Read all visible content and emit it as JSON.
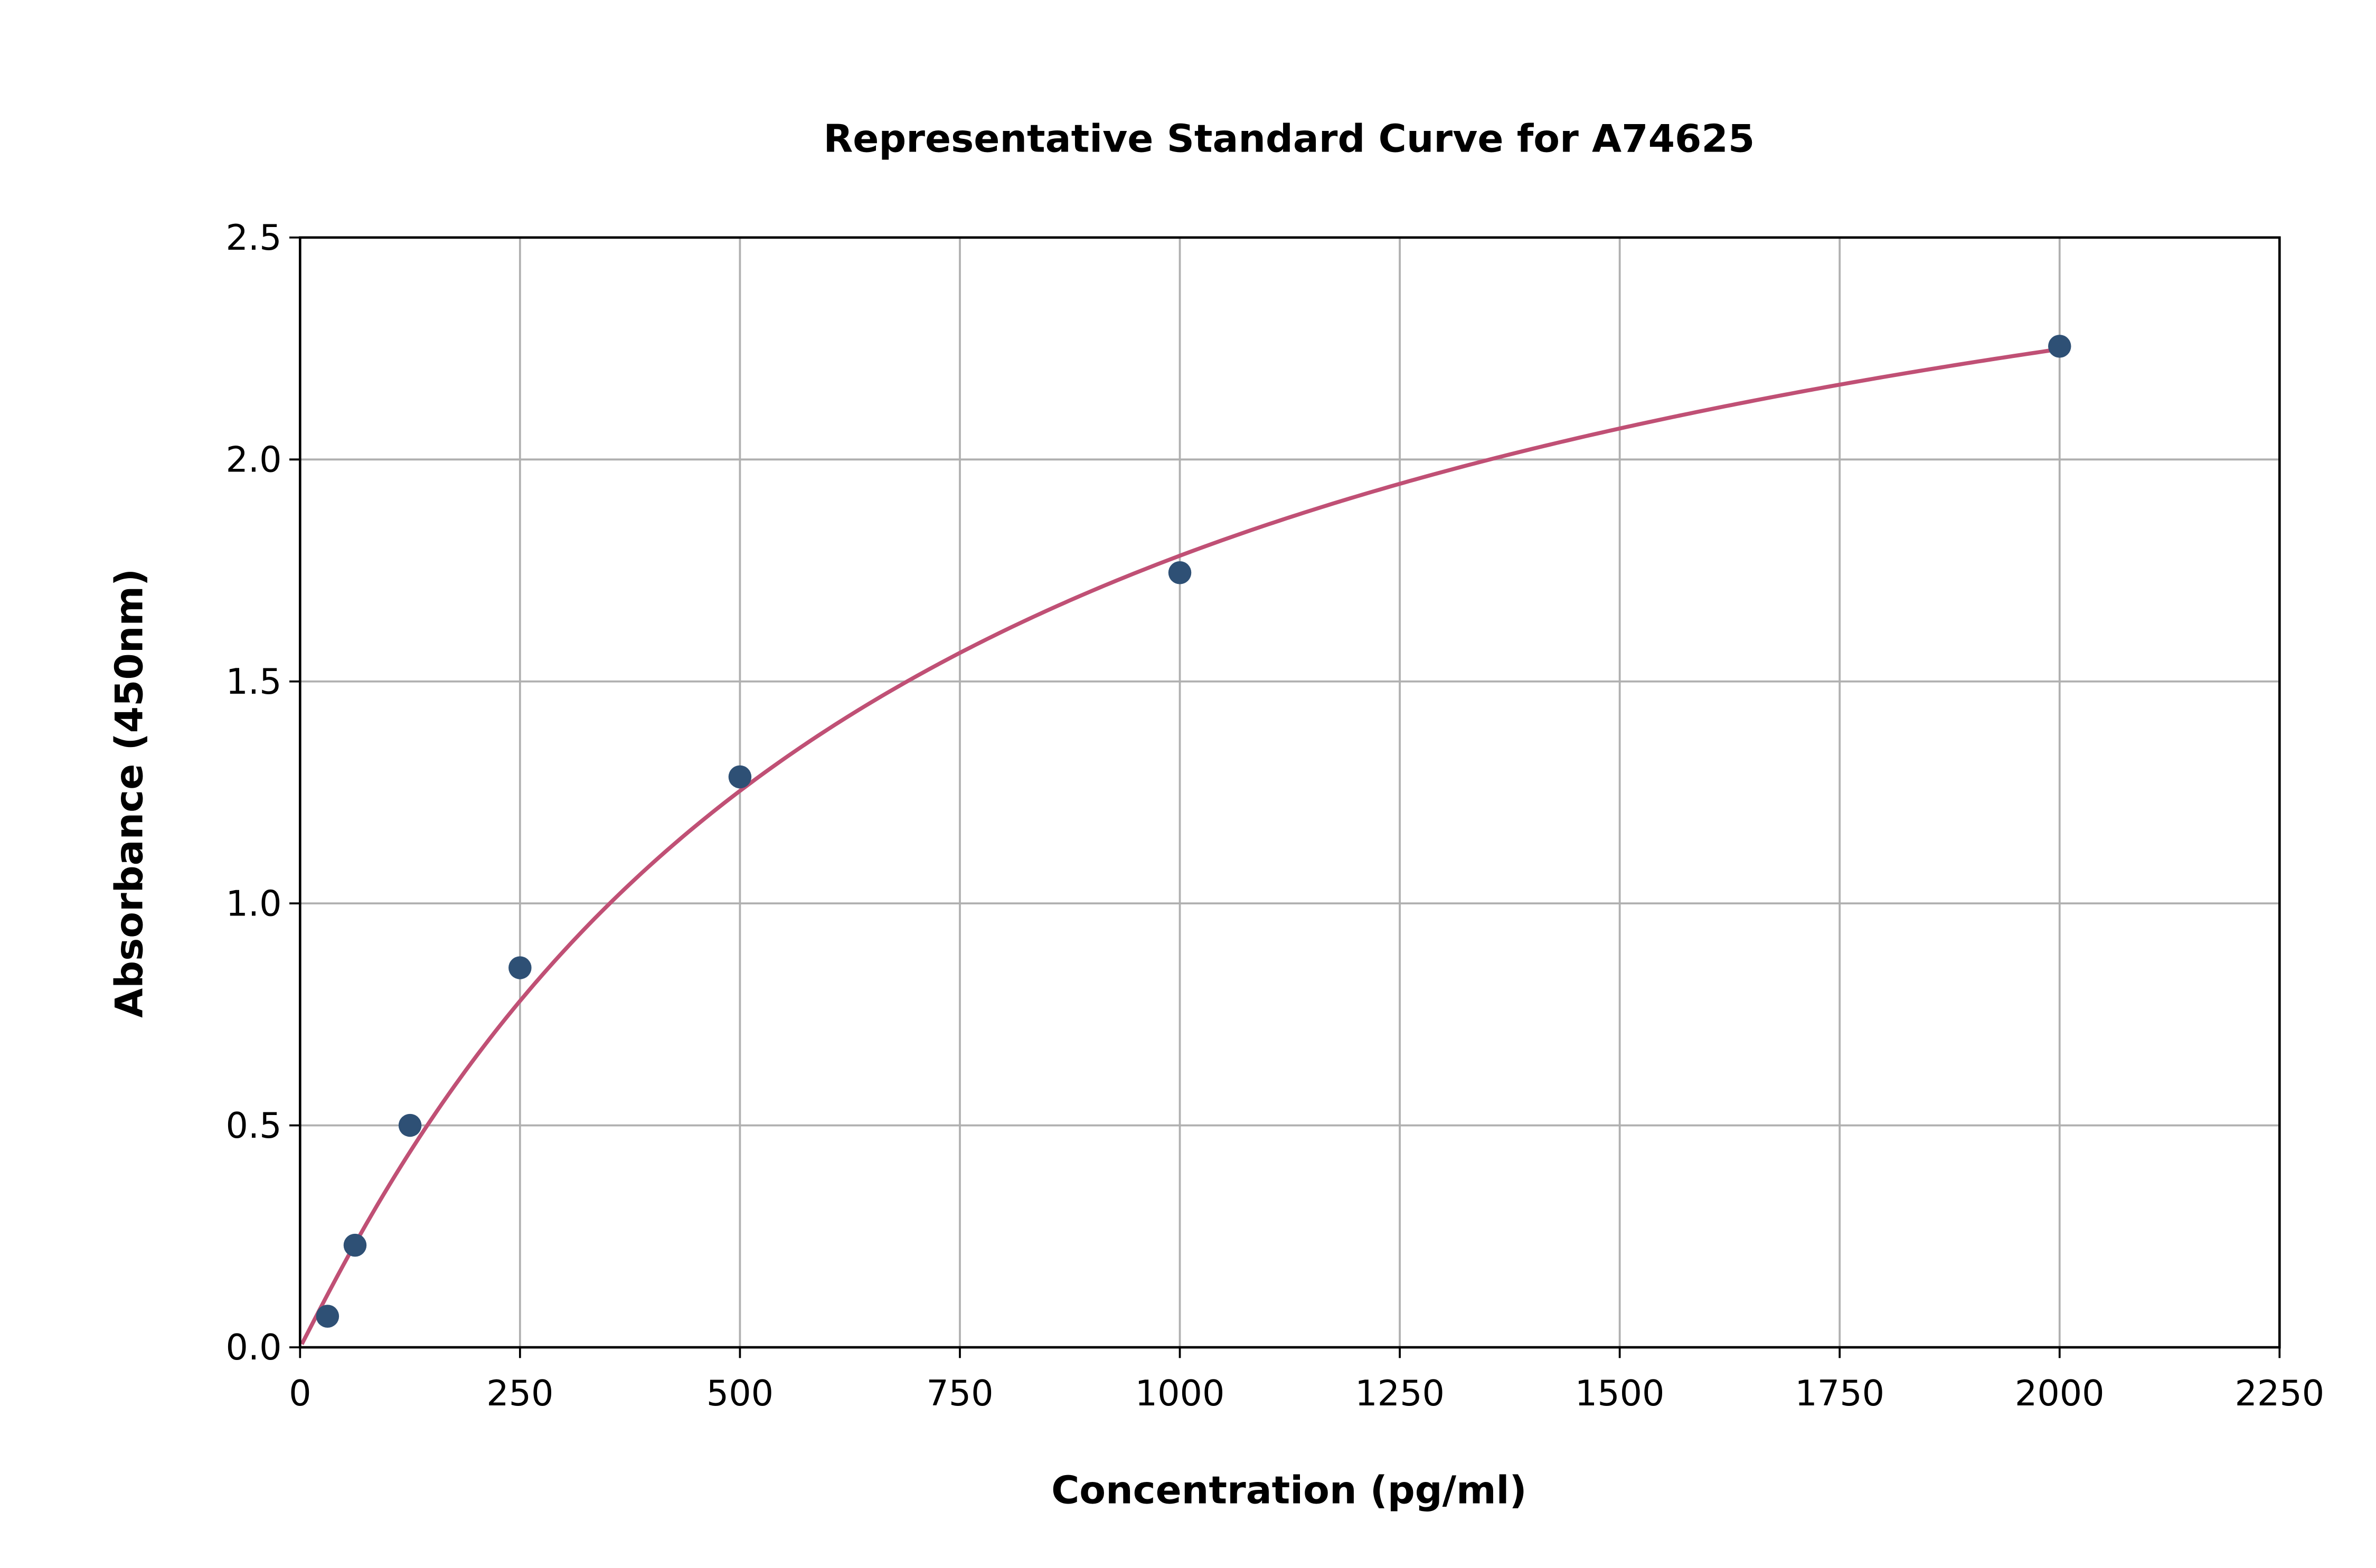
{
  "chart_data": {
    "type": "scatter",
    "title": "Representative Standard Curve for A74625",
    "xlabel": "Concentration (pg/ml)",
    "ylabel": "Absorbance (450nm)",
    "xlim": [
      0,
      2250
    ],
    "ylim": [
      0,
      2.5
    ],
    "xticks": [
      "0",
      "250",
      "500",
      "750",
      "1000",
      "1250",
      "1500",
      "1750",
      "2000",
      "2250"
    ],
    "yticks": [
      "0.0",
      "0.5",
      "1.0",
      "1.5",
      "2.0",
      "2.5"
    ],
    "grid": true,
    "points": [
      {
        "x": 31.25,
        "y": 0.07
      },
      {
        "x": 62.5,
        "y": 0.23
      },
      {
        "x": 125,
        "y": 0.5
      },
      {
        "x": 250,
        "y": 0.855
      },
      {
        "x": 500,
        "y": 1.285
      },
      {
        "x": 1000,
        "y": 1.745
      },
      {
        "x": 2000,
        "y": 2.255
      }
    ],
    "fit_curve": "fitted curve through standards",
    "colors": {
      "points": "#2e5075",
      "curve": "#c05075",
      "grid": "#b0b0b0"
    }
  }
}
